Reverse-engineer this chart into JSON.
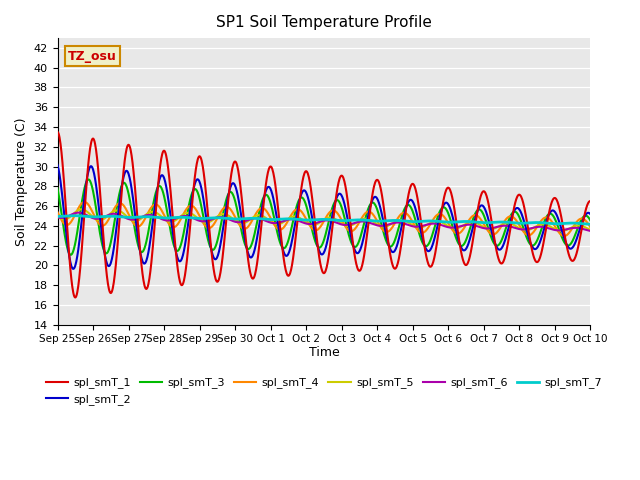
{
  "title": "SP1 Soil Temperature Profile",
  "xlabel": "Time",
  "ylabel": "Soil Temperature (C)",
  "ylim": [
    14,
    43
  ],
  "annotation_text": "TZ_osu",
  "annotation_color": "#cc0000",
  "annotation_bg": "#f0f0c8",
  "annotation_border": "#cc8800",
  "series_colors": {
    "spl_smT_1": "#dd0000",
    "spl_smT_2": "#0000cc",
    "spl_smT_3": "#00bb00",
    "spl_smT_4": "#ff8800",
    "spl_smT_5": "#cccc00",
    "spl_smT_6": "#aa00aa",
    "spl_smT_7": "#00cccc"
  },
  "tick_labels": [
    "Sep 25",
    "Sep 26",
    "Sep 27",
    "Sep 28",
    "Sep 29",
    "Sep 30",
    "Oct 1",
    "Oct 2",
    "Oct 3",
    "Oct 4",
    "Oct 5",
    "Oct 6",
    "Oct 7",
    "Oct 8",
    "Oct 9",
    "Oct 10"
  ],
  "bg_color": "#e8e8e8",
  "grid_color": "#ffffff",
  "linewidth": 1.5
}
